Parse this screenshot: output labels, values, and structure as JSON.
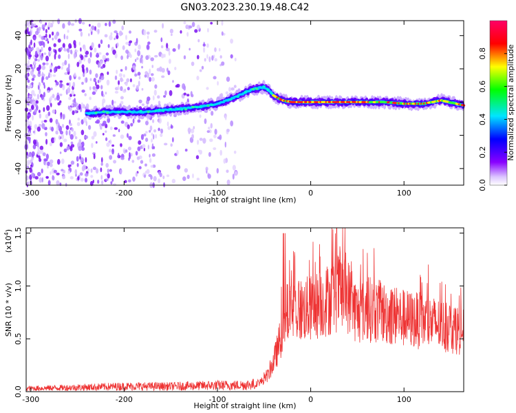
{
  "title": "GN03.2023.230.19.48.C42",
  "chart_data": [
    {
      "type": "heatmap",
      "xlabel": "Height of straight line (km)",
      "ylabel": "Frequency (Hz)",
      "xlim": [
        -305,
        164
      ],
      "ylim": [
        -50,
        49
      ],
      "x_ticks": [
        -300,
        -200,
        -100,
        0,
        100
      ],
      "y_ticks": [
        -40,
        -20,
        0,
        20,
        40
      ],
      "colorbar": {
        "label": "Normalized spectral amplitude",
        "range": [
          0,
          1
        ],
        "ticks": [
          0.0,
          0.2,
          0.4,
          0.6,
          0.8
        ],
        "tick_labels": [
          "0.0",
          "0.2",
          "0.4",
          "0.6",
          "0.8"
        ]
      },
      "ridge": {
        "x": [
          -240,
          -220,
          -200,
          -180,
          -160,
          -140,
          -120,
          -100,
          -90,
          -80,
          -70,
          -60,
          -50,
          -45,
          -40,
          -30,
          -20,
          0,
          20,
          40,
          60,
          80,
          100,
          120,
          140,
          164
        ],
        "frequency": [
          -7,
          -6,
          -6,
          -6,
          -5,
          -4,
          -3,
          -1,
          1,
          3,
          6,
          8,
          9,
          7,
          4,
          1,
          0,
          0,
          0,
          0,
          0,
          0,
          -1,
          -1,
          1,
          -2
        ]
      },
      "noise_region_x": [
        -305,
        -80
      ]
    },
    {
      "type": "line",
      "xlabel": "Height of straight line (km)",
      "ylabel": "SNR (10 * v/v)",
      "y_multiplier": "(x10",
      "y_multiplier_exp": "4",
      "y_multiplier_close": ")",
      "xlim": [
        -305,
        164
      ],
      "ylim": [
        0,
        1.55
      ],
      "x_ticks": [
        -300,
        -200,
        -100,
        0,
        100
      ],
      "y_ticks": [
        0.0,
        0.5,
        1.0,
        1.5
      ],
      "y_tick_labels": [
        "0.0",
        "0.5",
        "1.0",
        "1.5"
      ],
      "color": "#ee3333",
      "envelope": {
        "x": [
          -305,
          -250,
          -200,
          -150,
          -100,
          -80,
          -60,
          -50,
          -45,
          -40,
          -35,
          -30,
          -25,
          -20,
          0,
          20,
          30,
          40,
          50,
          60,
          80,
          100,
          120,
          140,
          164
        ],
        "mean": [
          0.03,
          0.04,
          0.05,
          0.05,
          0.06,
          0.06,
          0.07,
          0.12,
          0.18,
          0.3,
          0.45,
          0.65,
          0.8,
          0.82,
          0.85,
          0.95,
          1.02,
          0.98,
          0.8,
          0.85,
          0.8,
          0.75,
          0.72,
          0.68,
          0.62
        ]
      }
    }
  ]
}
